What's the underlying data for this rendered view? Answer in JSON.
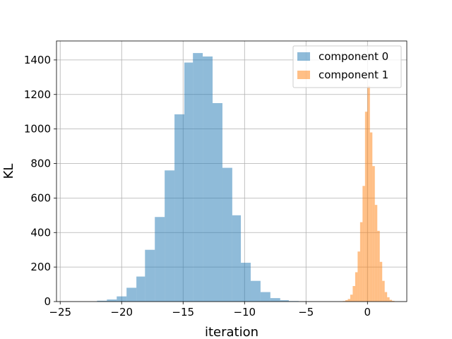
{
  "chart_data": {
    "type": "bar",
    "xlabel": "iteration",
    "ylabel": "KL",
    "xlim": [
      -25.3,
      3.2
    ],
    "ylim": [
      0,
      1510
    ],
    "xticks": [
      -25,
      -20,
      -15,
      -10,
      -5,
      0
    ],
    "yticks": [
      0,
      200,
      400,
      600,
      800,
      1000,
      1200,
      1400
    ],
    "xtick_labels": [
      "−25",
      "−20",
      "−15",
      "−10",
      "−5",
      "0"
    ],
    "ytick_labels": [
      "0",
      "200",
      "400",
      "600",
      "800",
      "1000",
      "1200",
      "1400"
    ],
    "grid": true,
    "legend_position": "top-right",
    "series": [
      {
        "name": "component 0",
        "color": "#1f77b4",
        "opacity": 0.5,
        "bins": [
          {
            "x0": -22.0,
            "x1": -21.2,
            "value": 5
          },
          {
            "x0": -21.2,
            "x1": -20.4,
            "value": 12
          },
          {
            "x0": -20.4,
            "x1": -19.6,
            "value": 30
          },
          {
            "x0": -19.6,
            "x1": -18.8,
            "value": 80
          },
          {
            "x0": -18.8,
            "x1": -18.1,
            "value": 145
          },
          {
            "x0": -18.1,
            "x1": -17.3,
            "value": 300
          },
          {
            "x0": -17.3,
            "x1": -16.5,
            "value": 490
          },
          {
            "x0": -16.5,
            "x1": -15.7,
            "value": 760
          },
          {
            "x0": -15.7,
            "x1": -14.9,
            "value": 1085
          },
          {
            "x0": -14.9,
            "x1": -14.2,
            "value": 1385
          },
          {
            "x0": -14.2,
            "x1": -13.4,
            "value": 1440
          },
          {
            "x0": -13.4,
            "x1": -12.6,
            "value": 1420
          },
          {
            "x0": -12.6,
            "x1": -11.8,
            "value": 1150
          },
          {
            "x0": -11.8,
            "x1": -11.0,
            "value": 775
          },
          {
            "x0": -11.0,
            "x1": -10.3,
            "value": 500
          },
          {
            "x0": -10.3,
            "x1": -9.5,
            "value": 225
          },
          {
            "x0": -9.5,
            "x1": -8.7,
            "value": 120
          },
          {
            "x0": -8.7,
            "x1": -7.9,
            "value": 55
          },
          {
            "x0": -7.9,
            "x1": -7.1,
            "value": 20
          },
          {
            "x0": -7.1,
            "x1": -6.4,
            "value": 8
          },
          {
            "x0": -6.4,
            "x1": -5.6,
            "value": 3
          }
        ]
      },
      {
        "name": "component 1",
        "color": "#ff7f0e",
        "opacity": 0.5,
        "bins": [
          {
            "x0": -2.0,
            "x1": -1.8,
            "value": 3
          },
          {
            "x0": -1.8,
            "x1": -1.6,
            "value": 8
          },
          {
            "x0": -1.6,
            "x1": -1.4,
            "value": 15
          },
          {
            "x0": -1.4,
            "x1": -1.2,
            "value": 40
          },
          {
            "x0": -1.2,
            "x1": -1.0,
            "value": 90
          },
          {
            "x0": -1.0,
            "x1": -0.8,
            "value": 170
          },
          {
            "x0": -0.8,
            "x1": -0.6,
            "value": 290
          },
          {
            "x0": -0.6,
            "x1": -0.4,
            "value": 460
          },
          {
            "x0": -0.4,
            "x1": -0.2,
            "value": 670
          },
          {
            "x0": -0.2,
            "x1": 0.0,
            "value": 1100
          },
          {
            "x0": 0.0,
            "x1": 0.2,
            "value": 1250
          },
          {
            "x0": 0.2,
            "x1": 0.4,
            "value": 980
          },
          {
            "x0": 0.4,
            "x1": 0.6,
            "value": 785
          },
          {
            "x0": 0.6,
            "x1": 0.8,
            "value": 560
          },
          {
            "x0": 0.8,
            "x1": 1.0,
            "value": 410
          },
          {
            "x0": 1.0,
            "x1": 1.2,
            "value": 230
          },
          {
            "x0": 1.2,
            "x1": 1.4,
            "value": 120
          },
          {
            "x0": 1.4,
            "x1": 1.6,
            "value": 55
          },
          {
            "x0": 1.6,
            "x1": 1.8,
            "value": 25
          },
          {
            "x0": 1.8,
            "x1": 2.0,
            "value": 10
          },
          {
            "x0": 2.0,
            "x1": 2.2,
            "value": 4
          }
        ]
      }
    ]
  }
}
